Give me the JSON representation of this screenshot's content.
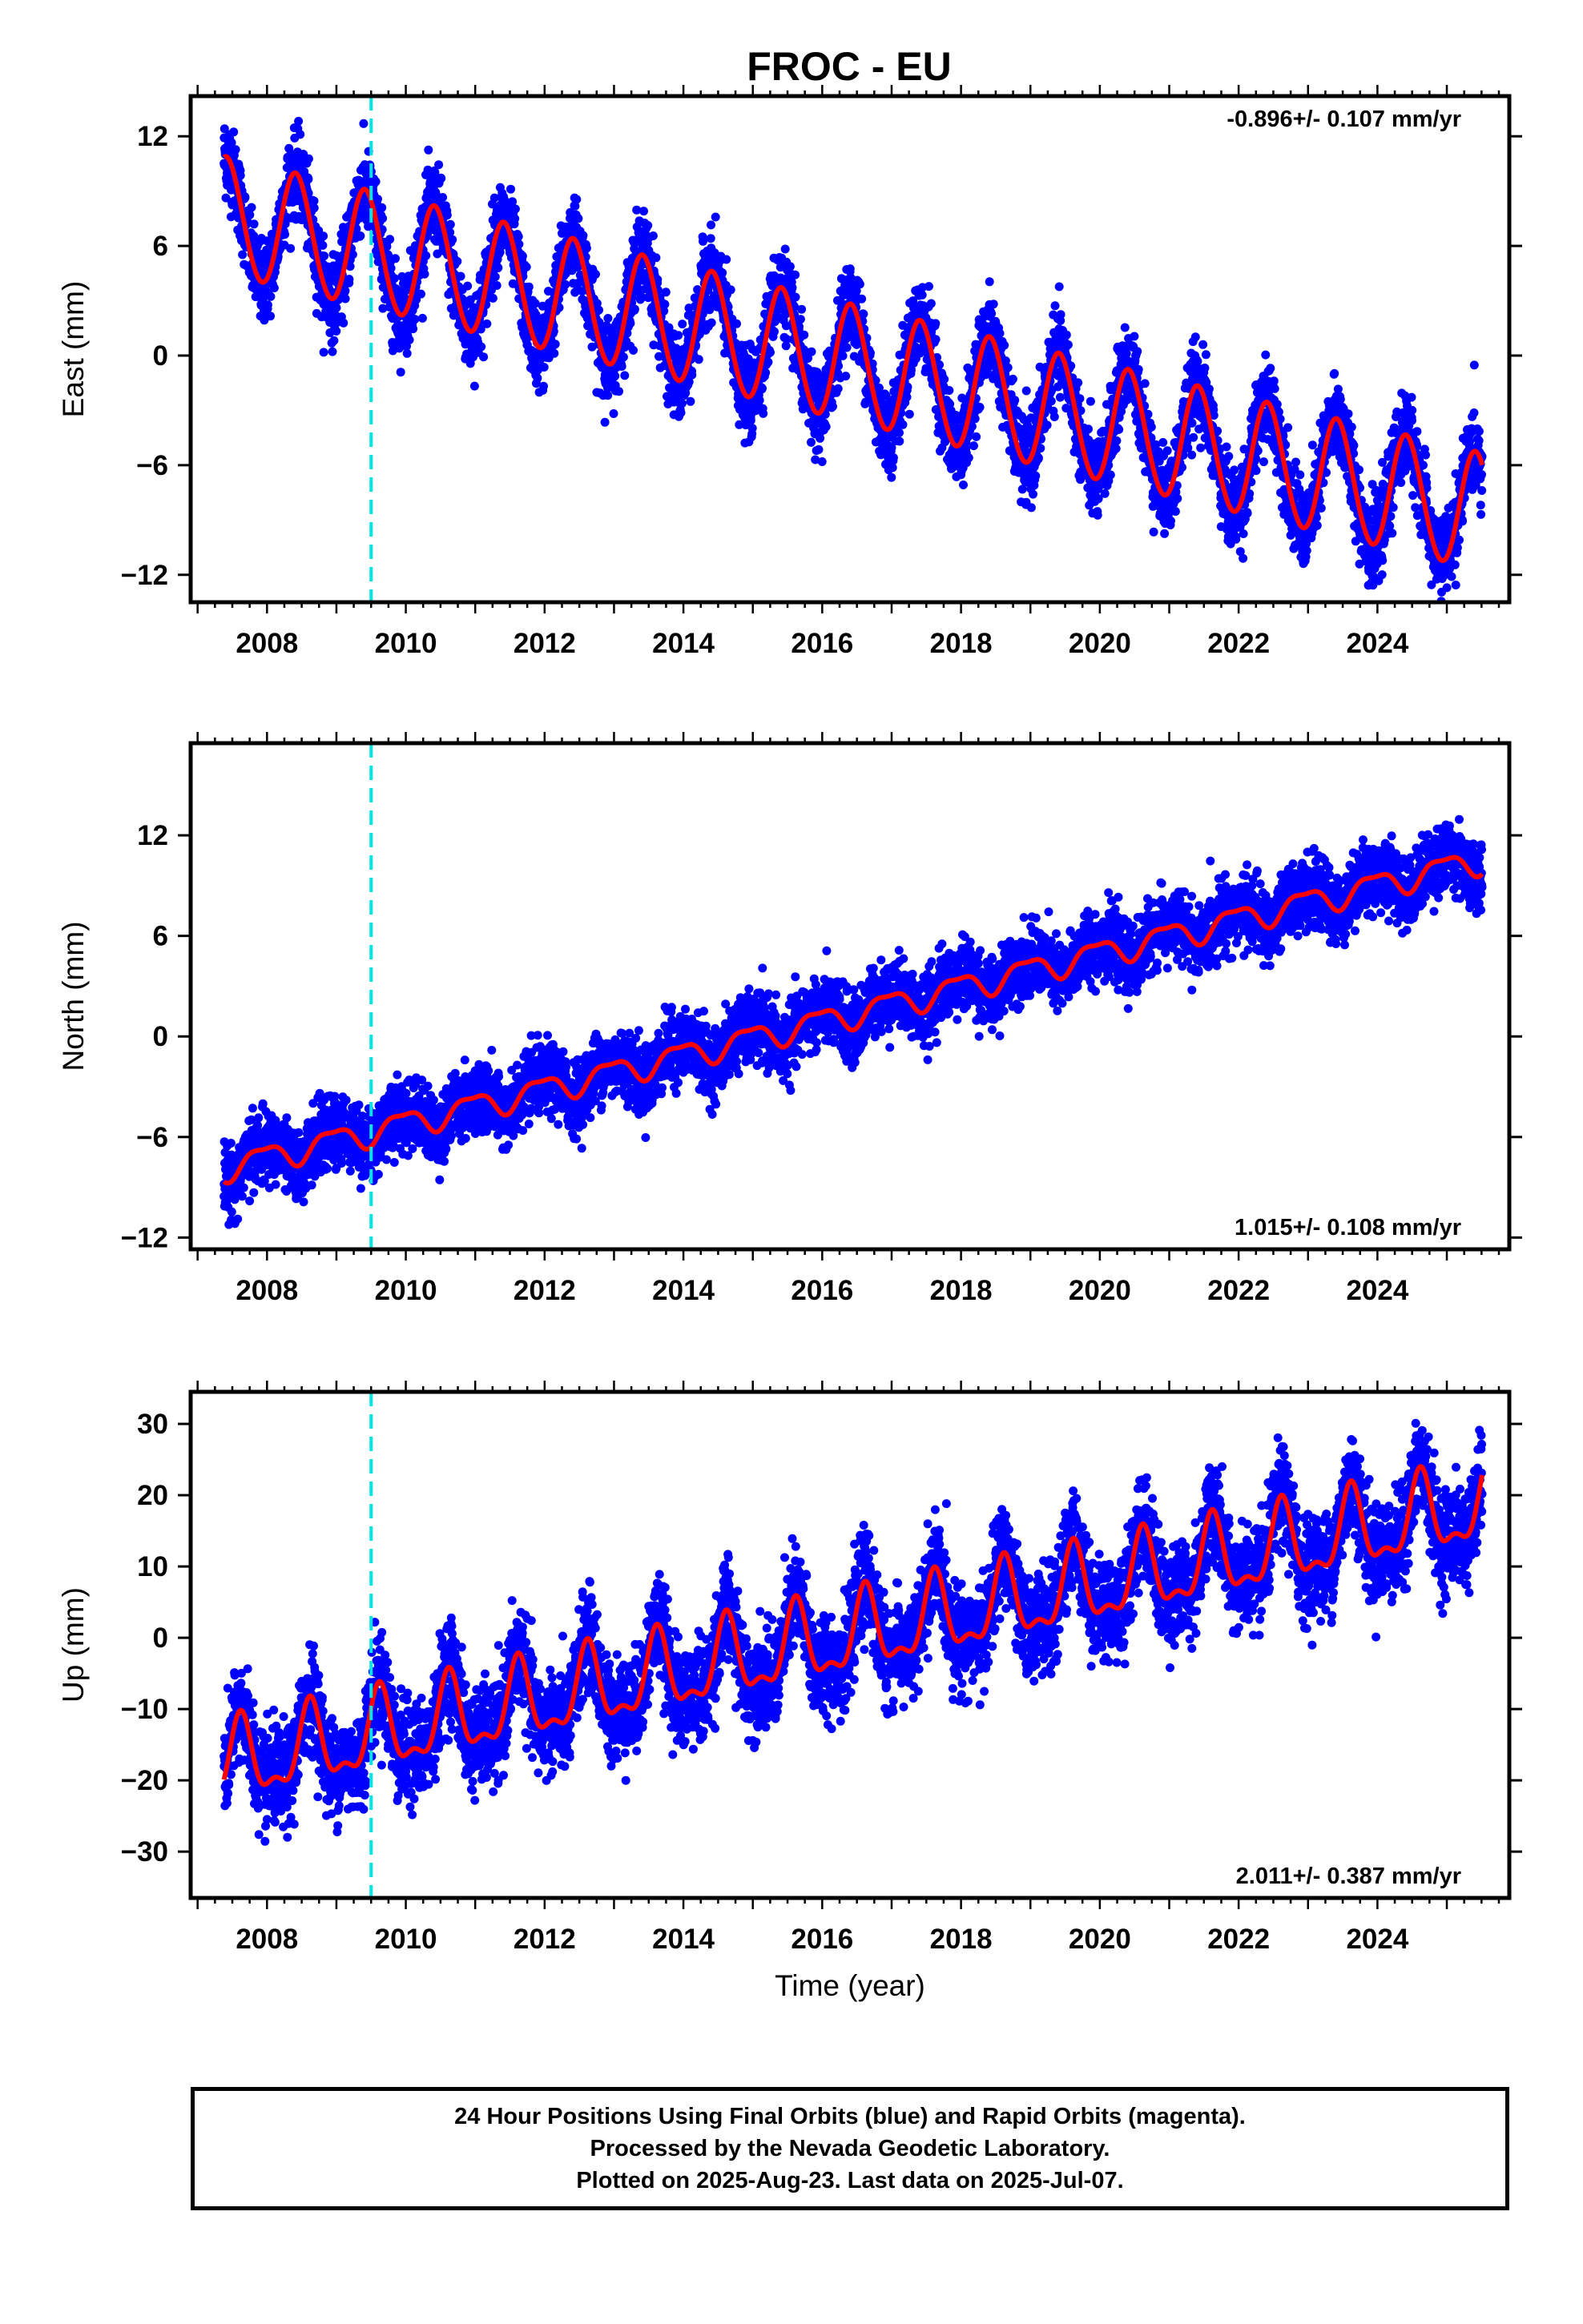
{
  "title": "FROC - EU",
  "footer": {
    "line1": "24 Hour Positions Using Final Orbits (blue) and Rapid Orbits (magenta).",
    "line2": "Processed by the Nevada Geodetic Laboratory.",
    "line3": "Plotted on 2025-Aug-23. Last data on 2025-Jul-07."
  },
  "colors": {
    "data": "#0000ff",
    "model": "#ff0000",
    "event_line": "#00e5e5",
    "frame": "#000000"
  },
  "chart_data": [
    {
      "type": "scatter",
      "name": "east",
      "ylabel": "East (mm)",
      "xlabel": "",
      "xlim": [
        2006.9,
        2025.9
      ],
      "ylim": [
        -13.5,
        14.2
      ],
      "yticks": [
        -12,
        -6,
        0,
        6,
        12
      ],
      "yticklabels": [
        "−12",
        "−6",
        "0",
        "6",
        "12"
      ],
      "xticks": [
        2008,
        2010,
        2012,
        2014,
        2016,
        2018,
        2020,
        2022,
        2024
      ],
      "rate_label": "-0.896+/- 0.107 mm/yr",
      "rate_position": "top-right",
      "event_year": 2009.5,
      "model": {
        "offset": 7.6,
        "rate": -0.896,
        "t0": 2007.4,
        "annual_amp": 3.2,
        "annual_peak": 0.42,
        "semiannual_amp": 0.15,
        "semiannual_peak": 0.35
      },
      "scatter_noise": 1.1,
      "date_range": [
        2007.38,
        2025.51
      ]
    },
    {
      "type": "scatter",
      "name": "north",
      "ylabel": "North (mm)",
      "xlabel": "",
      "xlim": [
        2006.9,
        2025.9
      ],
      "ylim": [
        -12.7,
        17.5
      ],
      "yticks": [
        -12,
        -6,
        0,
        6,
        12
      ],
      "yticklabels": [
        "−12",
        "−6",
        "0",
        "6",
        "12"
      ],
      "xticks": [
        2008,
        2010,
        2012,
        2014,
        2016,
        2018,
        2020,
        2022,
        2024
      ],
      "rate_label": "1.015+/- 0.108 mm/yr",
      "rate_position": "bottom-right",
      "event_year": 2009.5,
      "model": {
        "offset": -7.8,
        "rate": 1.015,
        "t0": 2007.4,
        "annual_amp": 0.75,
        "annual_peak": 0.95,
        "semiannual_amp": 0.25,
        "semiannual_peak": 0.2
      },
      "scatter_noise": 1.0,
      "date_range": [
        2007.38,
        2025.51
      ]
    },
    {
      "type": "scatter",
      "name": "up",
      "ylabel": "Up (mm)",
      "xlabel": "Time (year)",
      "xlim": [
        2006.9,
        2025.9
      ],
      "ylim": [
        -36.5,
        34.5
      ],
      "yticks": [
        -30,
        -20,
        -10,
        0,
        10,
        20,
        30
      ],
      "yticklabels": [
        "−30",
        "−20",
        "−10",
        "0",
        "10",
        "20",
        "30"
      ],
      "xticks": [
        2008,
        2010,
        2012,
        2014,
        2016,
        2018,
        2020,
        2022,
        2024
      ],
      "rate_label": "2.011+/- 0.387 mm/yr",
      "rate_position": "bottom-right",
      "event_year": 2009.5,
      "model": {
        "offset": -18.0,
        "rate": 2.011,
        "t0": 2007.4,
        "annual_amp": 5.2,
        "annual_peak": 0.62,
        "semiannual_amp": 2.2,
        "semiannual_peak": 0.62
      },
      "scatter_noise": 3.4,
      "date_range": [
        2007.38,
        2025.51
      ]
    }
  ]
}
